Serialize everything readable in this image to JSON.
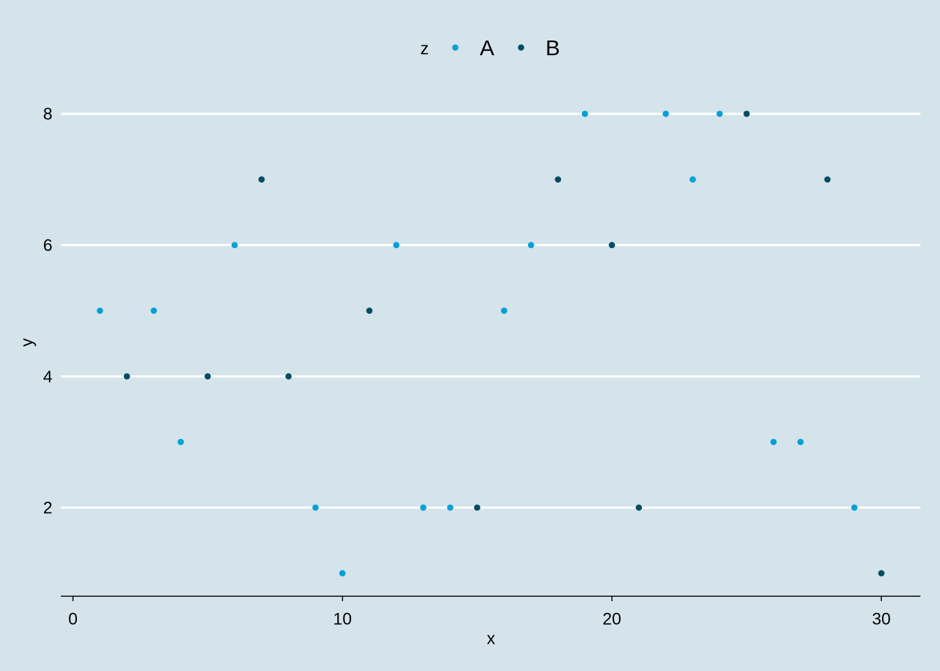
{
  "chart_data": {
    "type": "scatter",
    "x_label": "x",
    "y_label": "y",
    "legend_title": "z",
    "legend_position": "top",
    "grid": true,
    "xlim": [
      -0.45,
      31.45
    ],
    "xticks": [
      0,
      10,
      20,
      30
    ],
    "ylim": [
      0.65,
      8.35
    ],
    "yticks": [
      2,
      4,
      6,
      8
    ],
    "series": [
      {
        "name": "A",
        "color": "#00a0d8",
        "x": [
          1,
          3,
          4,
          6,
          9,
          10,
          12,
          13,
          14,
          16,
          17,
          19,
          22,
          23,
          24,
          26,
          27,
          29
        ],
        "y": [
          5,
          5,
          3,
          6,
          2,
          1,
          6,
          2,
          2,
          5,
          6,
          8,
          8,
          7,
          8,
          3,
          3,
          2
        ]
      },
      {
        "name": "B",
        "color": "#014d64",
        "x": [
          2,
          5,
          7,
          8,
          11,
          15,
          18,
          20,
          21,
          25,
          28,
          30
        ],
        "y": [
          4,
          4,
          7,
          4,
          5,
          2,
          7,
          6,
          2,
          8,
          7,
          1
        ]
      }
    ]
  }
}
